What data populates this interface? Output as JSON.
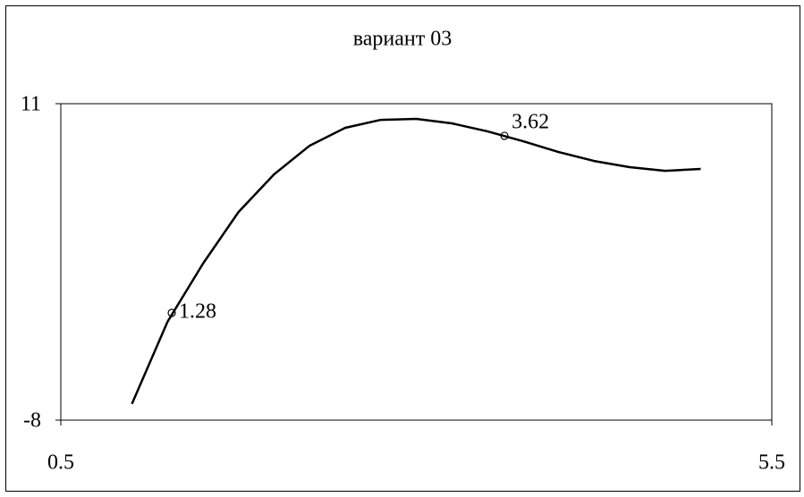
{
  "chart_data": {
    "type": "line",
    "title": "вариант 03",
    "x": [
      1.0,
      1.25,
      1.5,
      1.75,
      2.0,
      2.25,
      2.5,
      2.75,
      3.0,
      3.25,
      3.5,
      3.75,
      4.0,
      4.25,
      4.5,
      4.75,
      5.0
    ],
    "series": [
      {
        "color": "#000000",
        "values": [
          -7.03,
          -2.1,
          1.4,
          4.5,
          6.76,
          8.48,
          9.55,
          10.03,
          10.09,
          9.82,
          9.34,
          8.75,
          8.1,
          7.56,
          7.19,
          6.97,
          7.08
        ]
      }
    ],
    "points": {
      "x": [
        1.28,
        3.62
      ],
      "values": [
        -1.56,
        9.07
      ]
    },
    "xlim": [
      0.5,
      5.5
    ],
    "xticks": [
      0.5,
      5.5
    ],
    "ylim": [
      -8,
      11
    ],
    "yticks": [
      -8,
      11
    ],
    "grid": false
  }
}
